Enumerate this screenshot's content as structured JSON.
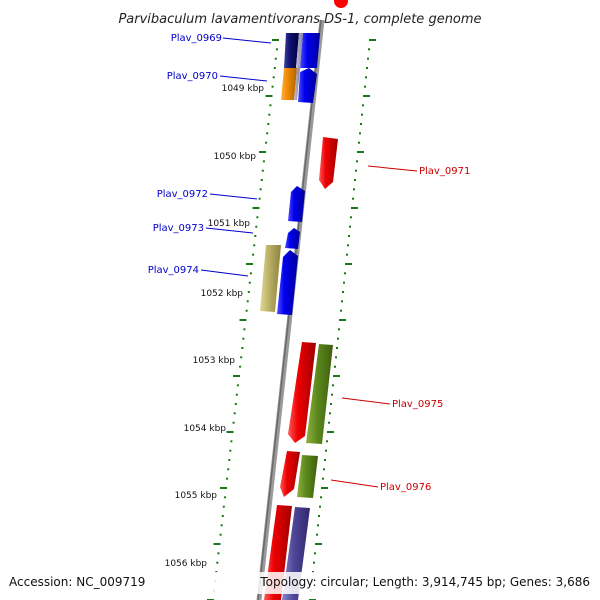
{
  "title": "Parvibaculum lavamentivorans DS-1, complete genome",
  "scale": {
    "unit": "kbp",
    "ticks": [
      "1049 kbp",
      "1050 kbp",
      "1051 kbp",
      "1052 kbp",
      "1053 kbp",
      "1054 kbp",
      "1055 kbp",
      "1056 kbp"
    ]
  },
  "genes": [
    {
      "id": "Plav_0969",
      "strand": "left",
      "color": "#0000ff"
    },
    {
      "id": "Plav_0970",
      "strand": "left",
      "color": "#0000ff"
    },
    {
      "id": "Plav_0971",
      "strand": "right",
      "color": "#ff0000"
    },
    {
      "id": "Plav_0972",
      "strand": "left",
      "color": "#0000ff"
    },
    {
      "id": "Plav_0973",
      "strand": "left",
      "color": "#0000ff"
    },
    {
      "id": "Plav_0974",
      "strand": "left",
      "color": "#0000ff"
    },
    {
      "id": "Plav_0975",
      "strand": "right",
      "color": "#ff0000"
    },
    {
      "id": "Plav_0976",
      "strand": "right",
      "color": "#ff0000"
    }
  ],
  "footer": {
    "accession": "Accession: NC_009719",
    "topology": "Topology: circular; Length: 3,914,745 bp; Genes: 3,686"
  },
  "colors": {
    "forward_label": "#0000cc",
    "reverse_label": "#cc0000",
    "tick": "#1a7a1a",
    "backbone": "#8a8a8a"
  }
}
